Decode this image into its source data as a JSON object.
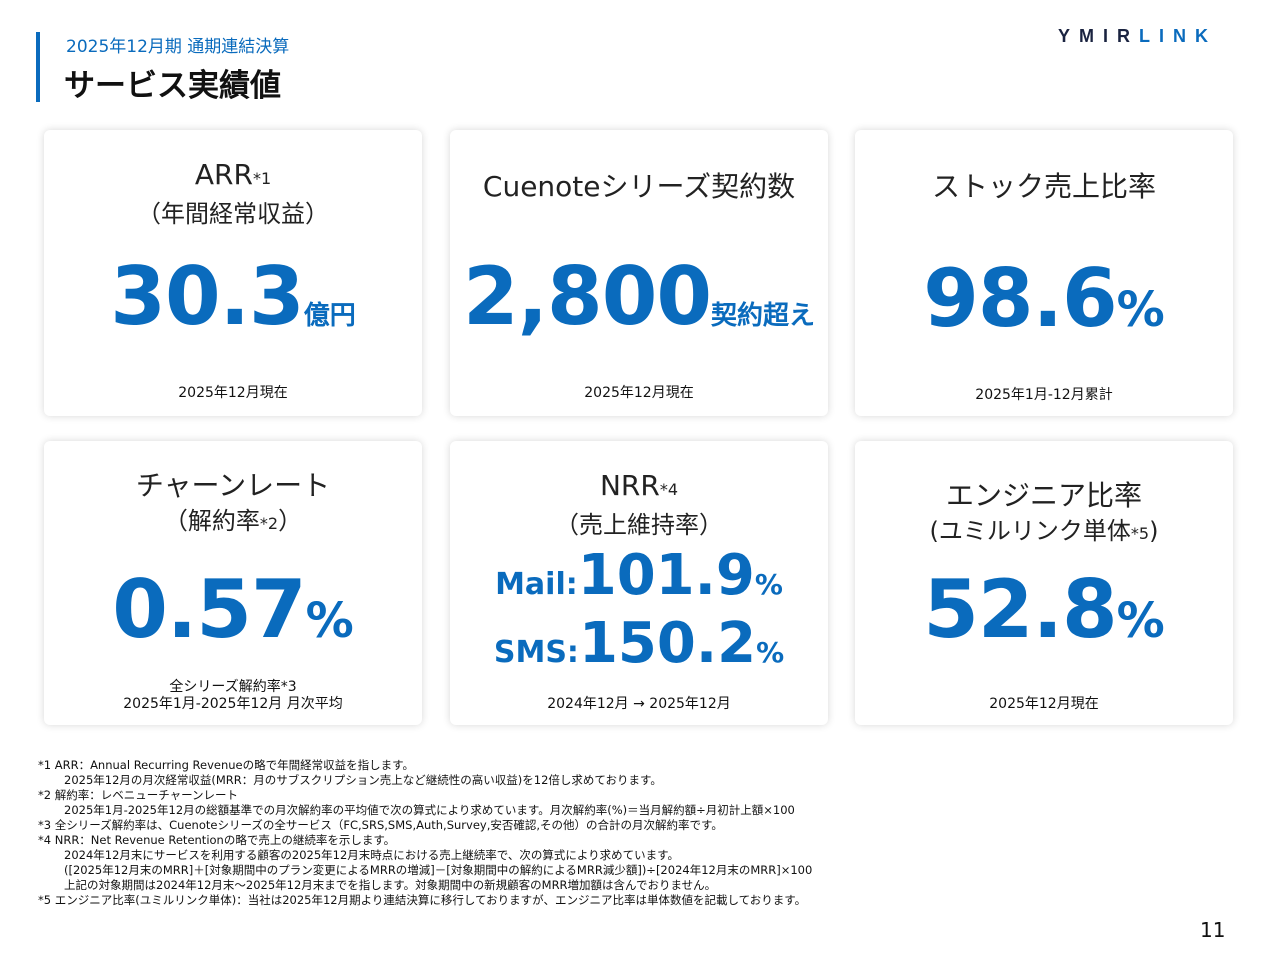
{
  "header": {
    "subtitle": "2025年12月期 通期連結決算",
    "title": "サービス実績値",
    "logo_dark": "YMIR",
    "logo_blue": "LINK"
  },
  "cards": {
    "arr": {
      "title": "ARR",
      "title_sup": "*1",
      "subtitle": "（年間経常収益）",
      "value": "30.3",
      "unit": "億円",
      "note": "2025年12月現在"
    },
    "contracts": {
      "title": "Cuenoteシリーズ契約数",
      "value": "2,800",
      "unit": "契約超え",
      "note": "2025年12月現在"
    },
    "stock": {
      "title": "ストック売上比率",
      "value": "98.6",
      "unit": "%",
      "note": "2025年1月-12月累計"
    },
    "churn": {
      "title": "チャーンレート",
      "subtitle_a": "（解約率",
      "subtitle_sup": "*2",
      "subtitle_b": "）",
      "value": "0.57",
      "unit": "%",
      "note1": "全シリーズ解約率*3",
      "note2": "2025年1月-2025年12月 月次平均"
    },
    "nrr": {
      "title": "NRR",
      "title_sup": "*4",
      "subtitle": "（売上維持率）",
      "mail_label": "Mail:",
      "mail_value": "101.9",
      "sms_label": "SMS:",
      "sms_value": "150.2",
      "unit": "%",
      "note": "2024年12月 → 2025年12月"
    },
    "engineer": {
      "title": "エンジニア比率",
      "subtitle_a": "(ユミルリンク単体",
      "subtitle_sup": "*5",
      "subtitle_b": ")",
      "value": "52.8",
      "unit": "%",
      "note": "2025年12月現在"
    }
  },
  "footnotes": [
    "*1 ARR：Annual Recurring Revenueの略で年間経常収益を指します。",
    "2025年12月の月次経常収益(MRR：月のサブスクリプション売上など継続性の高い収益)を12倍し求めております。",
    "*2 解約率：レベニューチャーンレート",
    "2025年1月-2025年12月の総額基準での月次解約率の平均値で次の算式により求めています。月次解約率(%)＝当月解約額÷月初計上額×100",
    "*3 全シリーズ解約率は、Cuenoteシリーズの全サービス（FC,SRS,SMS,Auth,Survey,安否確認,その他）の合計の月次解約率です。",
    "*4 NRR：Net Revenue Retentionの略で売上の継続率を示します。",
    "2024年12月末にサービスを利用する顧客の2025年12月末時点における売上継続率で、次の算式により求めています。",
    "([2025年12月末のMRR]＋[対象期間中のプラン変更によるMRRの増減]－[対象期間中の解約によるMRR減少額])÷[2024年12月末のMRR]×100",
    "上記の対象期間は2024年12月末～2025年12月末までを指します。対象期間中の新規顧客のMRR増加額は含んでおりません。",
    "*5 エンジニア比率(ユミルリンク単体)：当社は2025年12月期より連結決算に移行しておりますが、エンジニア比率は単体数値を記載しております。"
  ],
  "page_number": "11"
}
